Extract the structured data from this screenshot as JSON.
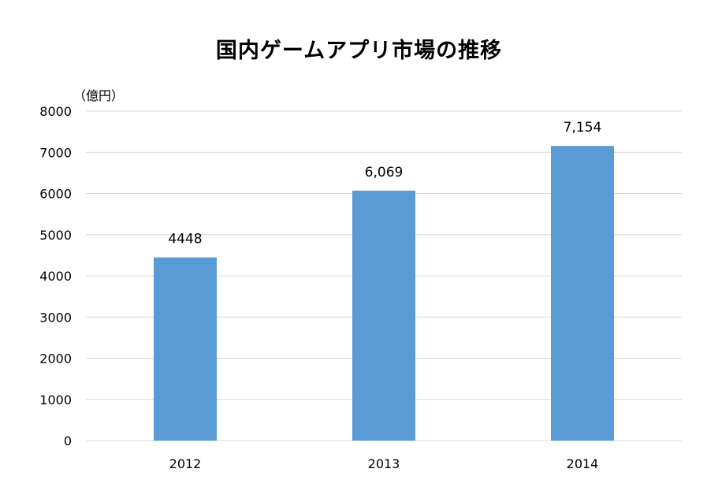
{
  "chart_data": {
    "type": "bar",
    "title": "国内ゲームアプリ市場の推移",
    "unit": "（億円）",
    "xlabel": "",
    "ylabel": "",
    "categories": [
      "2012",
      "2013",
      "2014"
    ],
    "values": [
      4448,
      6069,
      7154
    ],
    "data_labels": [
      "4448",
      "6,069",
      "7,154"
    ],
    "ylim": [
      0,
      8000
    ],
    "yticks": [
      0,
      1000,
      2000,
      3000,
      4000,
      5000,
      6000,
      7000,
      8000
    ],
    "ytick_labels": [
      "0",
      "1000",
      "2000",
      "3000",
      "4000",
      "5000",
      "6000",
      "7000",
      "8000"
    ],
    "grid": true,
    "legend": "none",
    "bar_color": "#5b9bd5",
    "grid_color": "#d9d9d9"
  }
}
